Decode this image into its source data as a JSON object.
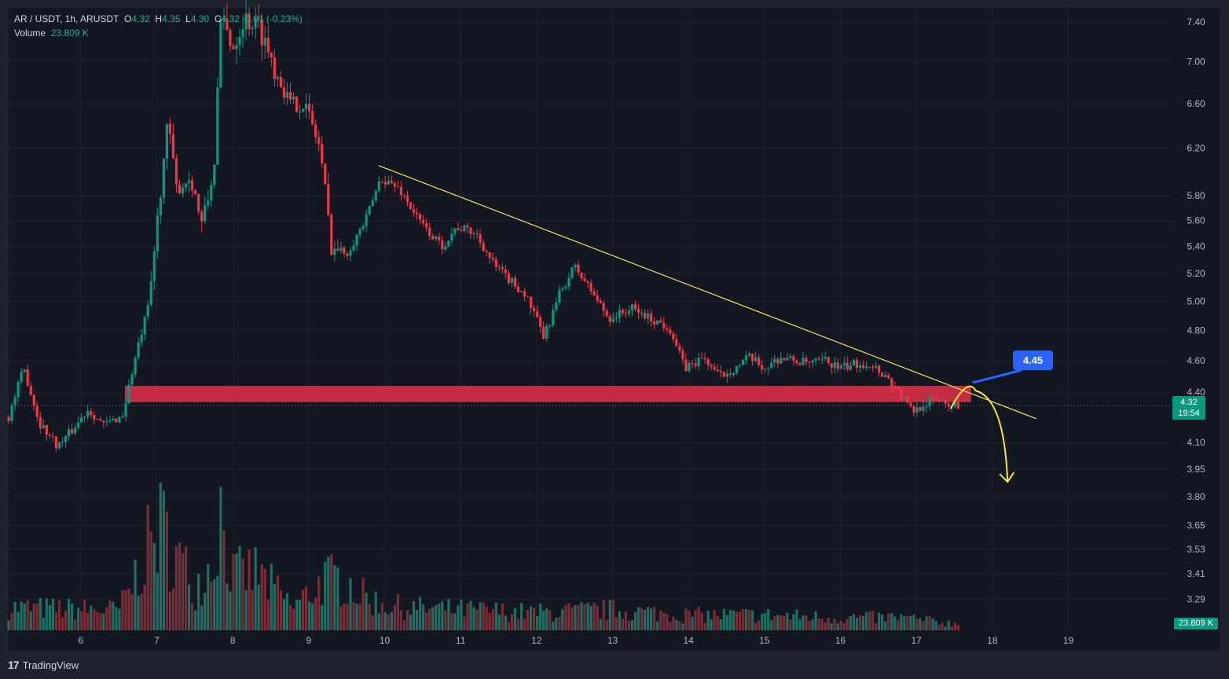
{
  "legend": {
    "symbol": "AR / USDT, 1h, ARUSDT",
    "o_label": "O",
    "o_value": "4.32",
    "h_label": "H",
    "h_value": "4.35",
    "l_label": "L",
    "l_value": "4.30",
    "c_label": "C",
    "c_value": "4.32",
    "change": "-0.01 (-0.23%)",
    "volume_label": "Volume",
    "volume_value": "23.809 K"
  },
  "last_price": {
    "price": "4.32",
    "countdown": "19:54"
  },
  "volume_tag": "23.809 K",
  "callout": "4.45",
  "branding": {
    "name": "TradingView"
  },
  "colors": {
    "background": "#131722",
    "frame": "#1e222d",
    "up": "#089981",
    "down": "#f23645",
    "zone": "#d32f45",
    "trendline": "#f5e663",
    "callout": "#2962ff",
    "grid": "#1f2330"
  },
  "chart_data": {
    "type": "candlestick",
    "symbol": "AR / USDT",
    "timeframe": "1h",
    "y_scale": "log",
    "ylim": [
      3.15,
      7.55
    ],
    "xlim": [
      5.05,
      20.35
    ],
    "y_ticks": [
      "7.40",
      "7.00",
      "6.60",
      "6.20",
      "5.80",
      "5.60",
      "5.40",
      "5.20",
      "5.00",
      "4.80",
      "4.60",
      "4.40",
      "4.10",
      "3.95",
      "3.80",
      "3.65",
      "3.53",
      "3.41",
      "3.29"
    ],
    "x_ticks": [
      "6",
      "7",
      "8",
      "9",
      "10",
      "11",
      "12",
      "13",
      "14",
      "15",
      "16",
      "17",
      "18",
      "19"
    ],
    "price_path": [
      [
        5.05,
        4.25
      ],
      [
        5.25,
        4.55
      ],
      [
        5.45,
        4.22
      ],
      [
        5.7,
        4.08
      ],
      [
        5.9,
        4.18
      ],
      [
        6.1,
        4.3
      ],
      [
        6.3,
        4.2
      ],
      [
        6.55,
        4.26
      ],
      [
        6.72,
        4.62
      ],
      [
        6.9,
        4.98
      ],
      [
        7.05,
        5.85
      ],
      [
        7.15,
        6.45
      ],
      [
        7.25,
        5.85
      ],
      [
        7.45,
        5.95
      ],
      [
        7.6,
        5.55
      ],
      [
        7.75,
        6.0
      ],
      [
        7.85,
        7.45
      ],
      [
        8.0,
        7.15
      ],
      [
        8.15,
        7.45
      ],
      [
        8.35,
        7.35
      ],
      [
        8.55,
        6.95
      ],
      [
        8.75,
        6.6
      ],
      [
        8.95,
        6.6
      ],
      [
        9.15,
        6.2
      ],
      [
        9.3,
        5.4
      ],
      [
        9.5,
        5.35
      ],
      [
        9.75,
        5.6
      ],
      [
        9.95,
        5.95
      ],
      [
        10.2,
        5.85
      ],
      [
        10.45,
        5.6
      ],
      [
        10.75,
        5.4
      ],
      [
        10.95,
        5.55
      ],
      [
        11.2,
        5.5
      ],
      [
        11.45,
        5.25
      ],
      [
        11.65,
        5.15
      ],
      [
        11.85,
        5.05
      ],
      [
        12.1,
        4.75
      ],
      [
        12.3,
        5.05
      ],
      [
        12.5,
        5.25
      ],
      [
        12.75,
        5.05
      ],
      [
        12.95,
        4.88
      ],
      [
        13.25,
        4.95
      ],
      [
        13.5,
        4.88
      ],
      [
        13.75,
        4.82
      ],
      [
        13.95,
        4.55
      ],
      [
        14.2,
        4.62
      ],
      [
        14.4,
        4.5
      ],
      [
        14.6,
        4.55
      ],
      [
        14.8,
        4.62
      ],
      [
        15.0,
        4.55
      ],
      [
        15.2,
        4.62
      ],
      [
        15.4,
        4.6
      ],
      [
        15.6,
        4.58
      ],
      [
        15.8,
        4.6
      ],
      [
        16.0,
        4.55
      ],
      [
        16.2,
        4.58
      ],
      [
        16.4,
        4.58
      ],
      [
        16.6,
        4.5
      ],
      [
        16.8,
        4.38
      ],
      [
        16.95,
        4.28
      ],
      [
        17.1,
        4.33
      ],
      [
        17.3,
        4.36
      ],
      [
        17.5,
        4.32
      ]
    ],
    "levels": {
      "last_price": 4.32,
      "resistance_zone": [
        4.34,
        4.44
      ],
      "callout_level": 4.45
    },
    "trendline": {
      "from": [
        9.92,
        6.05
      ],
      "to": [
        18.58,
        4.24
      ]
    },
    "projection": {
      "from": [
        17.45,
        4.3
      ],
      "peak": [
        17.78,
        4.41
      ],
      "to": [
        18.2,
        3.88
      ]
    },
    "volume": {
      "path": [
        [
          5.05,
          0.18
        ],
        [
          6.5,
          0.16
        ],
        [
          6.65,
          0.32
        ],
        [
          6.8,
          0.55
        ],
        [
          7.05,
          0.82
        ],
        [
          7.25,
          0.6
        ],
        [
          7.5,
          0.35
        ],
        [
          7.75,
          0.55
        ],
        [
          7.82,
          1.0
        ],
        [
          8.0,
          0.42
        ],
        [
          8.3,
          0.46
        ],
        [
          8.8,
          0.18
        ],
        [
          9.2,
          0.4
        ],
        [
          9.5,
          0.4
        ],
        [
          9.75,
          0.25
        ],
        [
          10.2,
          0.18
        ],
        [
          12.0,
          0.14
        ],
        [
          13.0,
          0.16
        ],
        [
          14.0,
          0.12
        ],
        [
          15.0,
          0.12
        ],
        [
          16.0,
          0.1
        ],
        [
          16.8,
          0.1
        ],
        [
          17.1,
          0.08
        ],
        [
          17.55,
          0.05
        ]
      ],
      "ylim": [
        0,
        1
      ]
    }
  }
}
